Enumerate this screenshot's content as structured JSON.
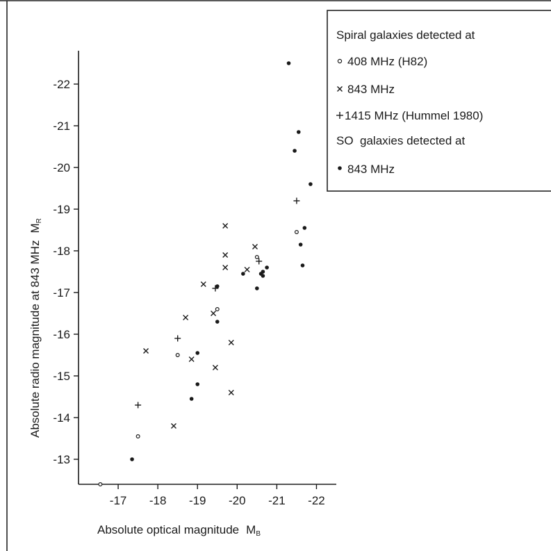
{
  "chart_data": {
    "type": "scatter",
    "xlabel": "Absolute optical magnitude",
    "xlabel_symbol": "M",
    "xlabel_symbol_sub": "B",
    "ylabel": "Absolute radio magnitude at 843 MHz",
    "ylabel_symbol": "M",
    "ylabel_symbol_sub": "R",
    "xlim": [
      -16.0,
      -22.5
    ],
    "ylim": [
      -12.4,
      -22.8
    ],
    "x_ticks": [
      -17,
      -18,
      -19,
      -20,
      -21,
      -22
    ],
    "y_ticks": [
      -13,
      -14,
      -15,
      -16,
      -17,
      -18,
      -19,
      -20,
      -21,
      -22
    ],
    "x_tick_labels": [
      "-17",
      "-18",
      "-19",
      "-20",
      "-21",
      "-22"
    ],
    "y_tick_labels": [
      "-13",
      "-14",
      "-15",
      "-16",
      "-17",
      "-18",
      "-19",
      "-20",
      "-21",
      "-22"
    ],
    "legend": {
      "position": "top-right",
      "spiral_heading": "Spiral galaxies detected at",
      "so_heading": "SO  galaxies detected at",
      "entries": [
        {
          "marker": "open-circle",
          "label": "408 MHz (H82)"
        },
        {
          "marker": "cross",
          "label": "843 MHz"
        },
        {
          "marker": "plus",
          "label": "1415 MHz (Hummel 1980)"
        },
        {
          "marker": "filled-circle",
          "label": "843 MHz"
        }
      ]
    },
    "series": [
      {
        "name": "408 MHz (H82)",
        "marker": "open-circle",
        "points": [
          {
            "x": -16.55,
            "y": -12.4
          },
          {
            "x": -17.5,
            "y": -13.55
          },
          {
            "x": -18.5,
            "y": -15.5
          },
          {
            "x": -19.5,
            "y": -16.6
          },
          {
            "x": -20.5,
            "y": -17.85
          },
          {
            "x": -21.5,
            "y": -18.45
          }
        ]
      },
      {
        "name": "843 MHz",
        "marker": "cross",
        "points": [
          {
            "x": -17.7,
            "y": -15.6
          },
          {
            "x": -18.4,
            "y": -13.8
          },
          {
            "x": -18.7,
            "y": -16.4
          },
          {
            "x": -18.85,
            "y": -15.4
          },
          {
            "x": -19.15,
            "y": -17.2
          },
          {
            "x": -19.4,
            "y": -16.5
          },
          {
            "x": -19.45,
            "y": -15.2
          },
          {
            "x": -19.7,
            "y": -17.6
          },
          {
            "x": -19.7,
            "y": -17.9
          },
          {
            "x": -19.7,
            "y": -18.6
          },
          {
            "x": -19.85,
            "y": -15.8
          },
          {
            "x": -19.85,
            "y": -14.6
          },
          {
            "x": -20.25,
            "y": -17.55
          },
          {
            "x": -20.45,
            "y": -18.1
          }
        ]
      },
      {
        "name": "1415 MHz (Hummel 1980)",
        "marker": "plus",
        "points": [
          {
            "x": -17.5,
            "y": -14.3
          },
          {
            "x": -18.5,
            "y": -15.9
          },
          {
            "x": -19.45,
            "y": -17.1
          },
          {
            "x": -20.55,
            "y": -17.75
          },
          {
            "x": -21.5,
            "y": -19.2
          }
        ]
      },
      {
        "name": "843 MHz",
        "marker": "filled-circle",
        "points": [
          {
            "x": -17.35,
            "y": -13.0
          },
          {
            "x": -18.85,
            "y": -14.45
          },
          {
            "x": -19.0,
            "y": -14.8
          },
          {
            "x": -19.0,
            "y": -15.55
          },
          {
            "x": -19.5,
            "y": -16.3
          },
          {
            "x": -19.5,
            "y": -17.15
          },
          {
            "x": -20.15,
            "y": -17.45
          },
          {
            "x": -20.5,
            "y": -17.1
          },
          {
            "x": -20.6,
            "y": -17.45
          },
          {
            "x": -20.65,
            "y": -17.5
          },
          {
            "x": -20.65,
            "y": -17.4
          },
          {
            "x": -20.75,
            "y": -17.6
          },
          {
            "x": -21.3,
            "y": -22.5
          },
          {
            "x": -21.45,
            "y": -20.4
          },
          {
            "x": -21.55,
            "y": -20.85
          },
          {
            "x": -21.6,
            "y": -18.15
          },
          {
            "x": -21.65,
            "y": -17.65
          },
          {
            "x": -21.7,
            "y": -18.55
          },
          {
            "x": -21.85,
            "y": -19.6
          }
        ]
      }
    ]
  }
}
